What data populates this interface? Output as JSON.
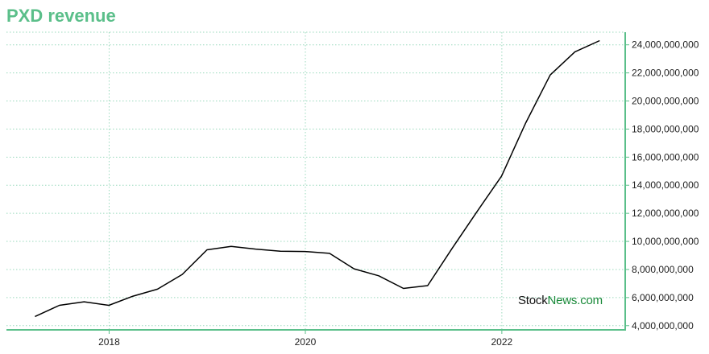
{
  "title": "PXD revenue",
  "colors": {
    "title": "#5bbf8a",
    "axis": "#5bbf8a",
    "grid": "#9ad9bd",
    "line": "#000000",
    "watermark_dark": "#111111",
    "watermark_green": "#1a8a3a"
  },
  "watermark": {
    "part1": "Stock",
    "part2": "News.com"
  },
  "chart_data": {
    "type": "line",
    "title": "PXD revenue",
    "xlabel": "",
    "ylabel": "",
    "x_axis_type": "date",
    "y_axis_side": "right",
    "grid": true,
    "xlim": [
      "2016-12-15",
      "2023-04-05"
    ],
    "ylim": [
      3700000000,
      24900000000
    ],
    "x_ticks": [
      "2018-01-01",
      "2020-01-01",
      "2022-01-01"
    ],
    "x_tick_labels": [
      "2018",
      "2020",
      "2022"
    ],
    "y_ticks": [
      4000000000,
      6000000000,
      8000000000,
      10000000000,
      12000000000,
      14000000000,
      16000000000,
      18000000000,
      20000000000,
      22000000000,
      24000000000
    ],
    "y_tick_labels": [
      "4,000,000,000",
      "6,000,000,000",
      "8,000,000,000",
      "10,000,000,000",
      "12,000,000,000",
      "14,000,000,000",
      "16,000,000,000",
      "18,000,000,000",
      "20,000,000,000",
      "22,000,000,000",
      "24,000,000,000"
    ],
    "x": [
      "2017-03-31",
      "2017-06-30",
      "2017-09-30",
      "2017-12-31",
      "2018-03-31",
      "2018-06-30",
      "2018-09-30",
      "2018-12-31",
      "2019-03-31",
      "2019-06-30",
      "2019-09-30",
      "2019-12-31",
      "2020-03-31",
      "2020-06-30",
      "2020-09-30",
      "2020-12-31",
      "2021-03-31",
      "2021-06-30",
      "2021-09-30",
      "2021-12-31",
      "2022-03-31",
      "2022-06-30",
      "2022-09-30",
      "2022-12-31"
    ],
    "series": [
      {
        "values": [
          4650000000,
          5450000000,
          5700000000,
          5450000000,
          6100000000,
          6600000000,
          7650000000,
          9400000000,
          9650000000,
          9450000000,
          9300000000,
          9280000000,
          9150000000,
          8050000000,
          7550000000,
          6650000000,
          6850000000,
          9500000000,
          12100000000,
          14650000000,
          18450000000,
          21850000000,
          23500000000,
          24300000000
        ]
      }
    ]
  }
}
